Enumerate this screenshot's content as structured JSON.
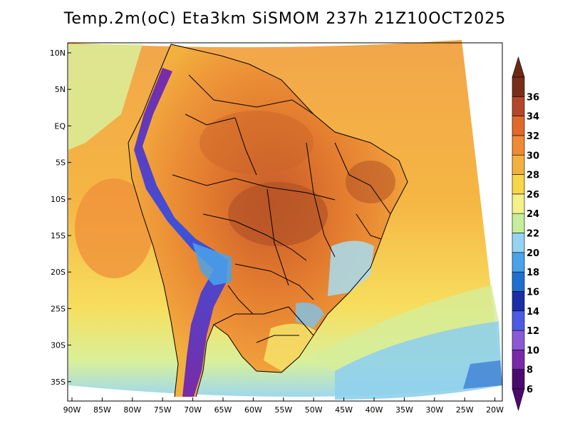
{
  "title": "Temp.2m(oC) Eta3km SiSMOM 237h 21Z10OCT2025",
  "map": {
    "lat_ticks": [
      "10N",
      "5N",
      "EQ",
      "5S",
      "10S",
      "15S",
      "20S",
      "25S",
      "30S",
      "35S"
    ],
    "lon_ticks": [
      "90W",
      "85W",
      "80W",
      "75W",
      "70W",
      "65W",
      "60W",
      "55W",
      "50W",
      "45W",
      "40W",
      "35W",
      "30W",
      "25W",
      "20W"
    ],
    "colors": {
      "ocean_warm": "#f2a64a",
      "ocean_mid": "#f5c242",
      "ocean_cool": "#f5e36a",
      "land_hot": "#e37c2f",
      "land_very_hot": "#b7562a",
      "andes_cold": "#3c52d8",
      "andes_very_cold": "#7a2aa8",
      "south_cool": "#8fd0ec",
      "borders": "#000000"
    }
  },
  "colorbar": {
    "labels": [
      "6",
      "8",
      "10",
      "12",
      "14",
      "16",
      "18",
      "20",
      "22",
      "24",
      "26",
      "28",
      "30",
      "32",
      "34",
      "36"
    ],
    "bands": [
      "#4b0b6e",
      "#7a2aa8",
      "#8a5ad6",
      "#4d5be3",
      "#1b2ea8",
      "#1f6fd0",
      "#4aa3ea",
      "#95d3f2",
      "#c4ee9a",
      "#f4f08a",
      "#f7d74a",
      "#f2b13f",
      "#ef8a35",
      "#e06a2b",
      "#b4472a",
      "#7a2e1a"
    ],
    "min_cap_color": "#4b0b6e",
    "max_cap_color": "#6a2a14"
  }
}
